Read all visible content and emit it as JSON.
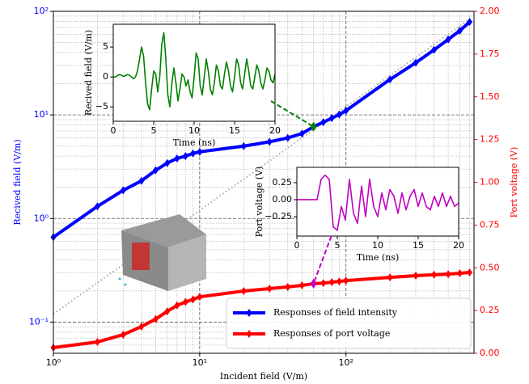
{
  "chart_data": [
    {
      "type": "line",
      "x_label": "Incident field (V/m)",
      "y_label": "Recived field (V/m)",
      "y2_label": "Port voltage (V)",
      "x": [
        1,
        2,
        3,
        4,
        5,
        6,
        7,
        8,
        9,
        10,
        20,
        30,
        40,
        50,
        60,
        70,
        80,
        90,
        100,
        200,
        300,
        400,
        500,
        600,
        700
      ],
      "series": [
        {
          "name": "Responses of field intensity",
          "color": "#0000ff",
          "values": [
            0.66,
            1.31,
            1.87,
            2.31,
            2.92,
            3.43,
            3.8,
            4.0,
            4.25,
            4.4,
            5.0,
            5.5,
            6.0,
            6.6,
            7.7,
            8.5,
            9.3,
            10.1,
            11,
            22,
            31.9,
            42.5,
            53.6,
            65,
            79
          ]
        },
        {
          "name": "Responses of port voltage",
          "color": "#ff0000",
          "axis": "y2",
          "values": [
            0.033,
            0.066,
            0.109,
            0.156,
            0.2,
            0.245,
            0.28,
            0.3,
            0.315,
            0.33,
            0.364,
            0.378,
            0.388,
            0.397,
            0.407,
            0.41,
            0.416,
            0.42,
            0.425,
            0.444,
            0.454,
            0.459,
            0.463,
            0.468,
            0.473
          ]
        }
      ],
      "reference_line": {
        "x": [
          1,
          700
        ],
        "values": [
          0.12,
          84
        ],
        "color": "#aaaaaa"
      },
      "xlim": [
        1,
        750
      ],
      "x_log": true,
      "xticks": [
        {
          "value": 1,
          "label": "10⁰"
        },
        {
          "value": 10,
          "label": "10¹"
        },
        {
          "value": 100,
          "label": "10²"
        }
      ],
      "ylim": [
        0.05,
        100
      ],
      "y_log": true,
      "yticks": [
        {
          "value": 0.1,
          "label": "10⁻¹"
        },
        {
          "value": 1,
          "label": "10⁰"
        },
        {
          "value": 10,
          "label": "10¹"
        },
        {
          "value": 100,
          "label": "10²"
        }
      ],
      "y2lim": [
        0,
        2
      ],
      "y2ticks": [
        {
          "value": 0,
          "label": "0.00"
        },
        {
          "value": 0.25,
          "label": "0.25"
        },
        {
          "value": 0.5,
          "label": "0.50"
        },
        {
          "value": 0.75,
          "label": "0.75"
        },
        {
          "value": 1,
          "label": "1.00"
        },
        {
          "value": 1.25,
          "label": "1.25"
        },
        {
          "value": 1.5,
          "label": "1.50"
        },
        {
          "value": 1.75,
          "label": "1.75"
        },
        {
          "value": 2,
          "label": "2.00"
        }
      ],
      "grid": true,
      "legend": "lower right"
    },
    {
      "type": "line",
      "x_label": "Time (ns)",
      "y_label": "Recived field (V/m)",
      "x": [
        0,
        0.25,
        0.5,
        0.75,
        1,
        1.25,
        1.5,
        1.75,
        2,
        2.25,
        2.5,
        2.75,
        3,
        3.25,
        3.5,
        3.75,
        4,
        4.25,
        4.5,
        4.75,
        5,
        5.25,
        5.5,
        5.75,
        6,
        6.25,
        6.5,
        6.75,
        7,
        7.25,
        7.5,
        7.75,
        8,
        8.25,
        8.5,
        8.75,
        9,
        9.25,
        9.5,
        9.75,
        10,
        10.25,
        10.5,
        10.75,
        11,
        11.25,
        11.5,
        11.75,
        12,
        12.25,
        12.5,
        12.75,
        13,
        13.25,
        13.5,
        13.75,
        14,
        14.25,
        14.5,
        14.75,
        15,
        15.25,
        15.5,
        15.75,
        16,
        16.25,
        16.5,
        16.75,
        17,
        17.25,
        17.5,
        17.75,
        18,
        18.25,
        18.5,
        18.75,
        19,
        19.25,
        19.5,
        19.75,
        20
      ],
      "series": [
        {
          "color": "#008000",
          "values": [
            0,
            0,
            0.2,
            0.4,
            0.3,
            0.1,
            0.2,
            0.4,
            0.3,
            0,
            -0.3,
            0,
            1,
            3,
            5,
            3.5,
            -1,
            -4.5,
            -5.5,
            -2,
            1,
            0.5,
            -2.5,
            0,
            5.5,
            7.4,
            3,
            -3,
            -5,
            -1,
            1.5,
            -1,
            -4,
            -2,
            0.5,
            0,
            -1.5,
            -0.5,
            -2.5,
            -3.5,
            0,
            4,
            3,
            -1.5,
            -3,
            0,
            3,
            1,
            -2,
            -3,
            -1,
            2,
            1,
            -1.5,
            -2,
            0.5,
            2.5,
            1,
            -1.5,
            -2.5,
            0,
            3,
            2,
            -1,
            -2,
            0.5,
            3,
            1,
            -1.5,
            -2,
            0,
            2,
            1,
            -1,
            -2,
            -0.5,
            1.5,
            1,
            -0.5,
            -1,
            0.5
          ]
        }
      ],
      "xlim": [
        0,
        20
      ],
      "xticks": [
        0,
        5,
        10,
        15,
        20
      ],
      "ylim": [
        -7.4,
        8.8
      ],
      "yticks": [
        {
          "value": -5,
          "label": "−5"
        },
        0,
        5
      ]
    },
    {
      "type": "line",
      "x_label": "Time (ns)",
      "y_label": "Port voltage (V)",
      "x": [
        0,
        0.5,
        1,
        1.5,
        2,
        2.5,
        3,
        3.5,
        4,
        4.5,
        5,
        5.5,
        6,
        6.5,
        7,
        7.5,
        8,
        8.5,
        9,
        9.5,
        10,
        10.5,
        11,
        11.5,
        12,
        12.5,
        13,
        13.5,
        14,
        14.5,
        15,
        15.5,
        16,
        16.5,
        17,
        17.5,
        18,
        18.5,
        19,
        19.5,
        20
      ],
      "series": [
        {
          "color": "#c000c0",
          "values": [
            0,
            0,
            0,
            0,
            0,
            0,
            0.3,
            0.36,
            0.3,
            -0.4,
            -0.45,
            -0.1,
            -0.3,
            0.3,
            -0.2,
            -0.35,
            0.2,
            -0.25,
            0.3,
            -0.1,
            -0.25,
            0.1,
            -0.15,
            0.15,
            0.05,
            -0.2,
            0.1,
            -0.15,
            0.05,
            0.15,
            -0.1,
            0.1,
            -0.1,
            -0.15,
            0.05,
            -0.1,
            0.1,
            -0.1,
            0.05,
            -0.1,
            -0.05
          ]
        }
      ],
      "xlim": [
        0,
        20
      ],
      "xticks": [
        0,
        5,
        10,
        15,
        20
      ],
      "ylim": [
        -0.536,
        0.476
      ],
      "yticks": [
        {
          "value": -0.25,
          "label": "−0.25"
        },
        {
          "value": 0,
          "label": "0.00"
        },
        {
          "value": 0.25,
          "label": "0.25"
        }
      ]
    }
  ]
}
